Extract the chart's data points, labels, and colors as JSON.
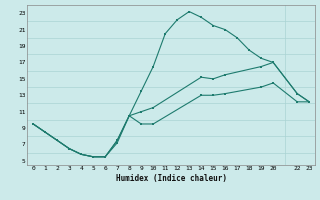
{
  "title": "",
  "xlabel": "Humidex (Indice chaleur)",
  "bg_color": "#cceaea",
  "grid_color": "#aad4d4",
  "line_color": "#1e7b6e",
  "xlim": [
    -0.5,
    23.5
  ],
  "ylim": [
    4.5,
    24
  ],
  "xticks": [
    0,
    1,
    2,
    3,
    4,
    5,
    6,
    7,
    8,
    9,
    10,
    11,
    12,
    13,
    14,
    15,
    16,
    17,
    18,
    19,
    20,
    22,
    23
  ],
  "yticks": [
    5,
    7,
    9,
    11,
    13,
    15,
    17,
    19,
    21,
    23
  ],
  "series1_x": [
    0,
    1,
    2,
    3,
    4,
    5,
    6,
    7,
    8,
    9,
    10,
    11,
    12,
    13,
    14,
    15,
    16,
    17,
    18,
    19,
    20,
    22,
    23
  ],
  "series1_y": [
    9.5,
    8.5,
    7.5,
    6.5,
    5.8,
    5.5,
    5.5,
    7.2,
    10.5,
    13.5,
    16.5,
    20.5,
    22.2,
    23.2,
    22.5,
    21.5,
    21.0,
    20.0,
    18.5,
    17.5,
    17.0,
    13.2,
    12.2
  ],
  "series2_x": [
    0,
    2,
    3,
    4,
    5,
    6,
    7,
    8,
    9,
    10,
    14,
    15,
    16,
    19,
    20,
    22,
    23
  ],
  "series2_y": [
    9.5,
    7.5,
    6.5,
    5.8,
    5.5,
    5.5,
    7.5,
    10.5,
    11.0,
    11.5,
    15.2,
    15.0,
    15.5,
    16.5,
    17.0,
    13.2,
    12.2
  ],
  "series3_x": [
    0,
    2,
    3,
    4,
    5,
    6,
    7,
    8,
    9,
    10,
    14,
    15,
    16,
    19,
    20,
    22,
    23
  ],
  "series3_y": [
    9.5,
    7.5,
    6.5,
    5.8,
    5.5,
    5.5,
    7.5,
    10.5,
    9.5,
    9.5,
    13.0,
    13.0,
    13.2,
    14.0,
    14.5,
    12.2,
    12.2
  ]
}
